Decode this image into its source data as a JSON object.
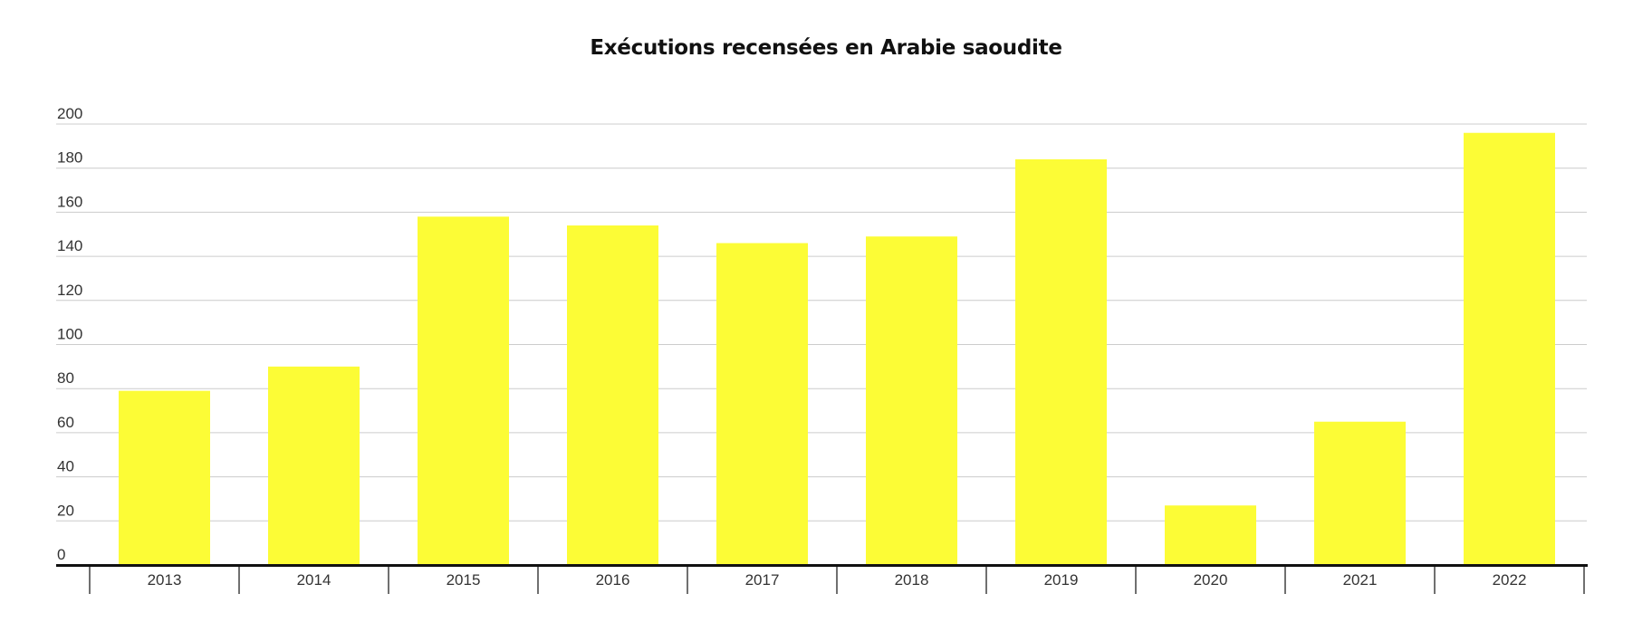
{
  "chart_data": {
    "type": "bar",
    "title": "Exécutions recensées en Arabie saoudite",
    "categories": [
      "2013",
      "2014",
      "2015",
      "2016",
      "2017",
      "2018",
      "2019",
      "2020",
      "2021",
      "2022"
    ],
    "values": [
      79,
      90,
      158,
      154,
      146,
      149,
      184,
      27,
      65,
      196
    ],
    "xlabel": "",
    "ylabel": "",
    "ylim": [
      0,
      200
    ],
    "yticks": [
      "0",
      "20",
      "40",
      "60",
      "80",
      "100",
      "120",
      "140",
      "160",
      "180",
      "200"
    ],
    "grid": true,
    "bar_color": "#fcfc36"
  }
}
